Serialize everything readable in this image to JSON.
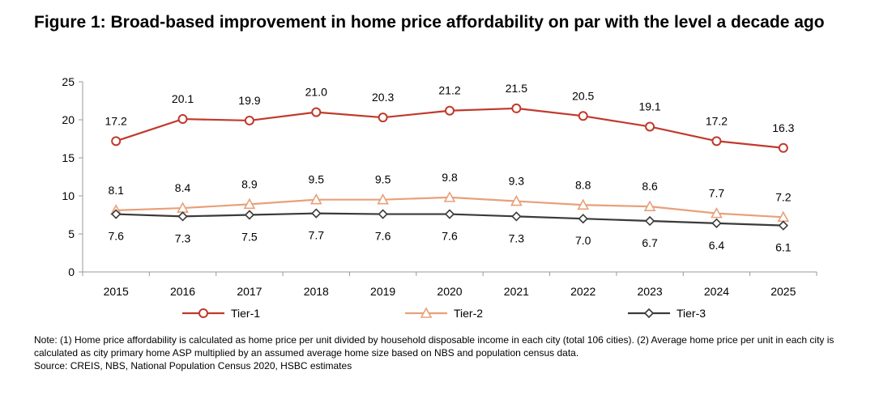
{
  "title": "Figure 1: Broad-based improvement in home price affordability on par with the level a decade ago",
  "notes": {
    "note": "Note: (1) Home price affordability is calculated as home price per unit divided by household disposable income in each city (total 106 cities). (2) Average home price per unit in each city is calculated as city primary home ASP multiplied by an assumed average home size based on NBS and population census data.",
    "source": "Source: CREIS, NBS, National Population Census 2020, HSBC estimates"
  },
  "chart_data": {
    "type": "line",
    "title": "Figure 1: Broad-based improvement in home price affordability on par with the level a decade ago",
    "xlabel": "",
    "ylabel": "",
    "x": [
      "2015",
      "2016",
      "2017",
      "2018",
      "2019",
      "2020",
      "2021",
      "2022",
      "2023",
      "2024",
      "2025"
    ],
    "ylim": [
      0,
      25
    ],
    "yticks": [
      0,
      5,
      10,
      15,
      20,
      25
    ],
    "grid": false,
    "legend": "bottom",
    "series": [
      {
        "name": "Tier-1",
        "values": [
          17.2,
          20.1,
          19.9,
          21.0,
          20.3,
          21.2,
          21.5,
          20.5,
          19.1,
          17.2,
          16.3
        ],
        "labels": [
          "17.2",
          "20.1",
          "19.9",
          "21.0",
          "20.3",
          "21.2",
          "21.5",
          "20.5",
          "19.1",
          "17.2",
          "16.3"
        ],
        "color": "#c0392b",
        "marker": "circle",
        "label_position": "above"
      },
      {
        "name": "Tier-2",
        "values": [
          8.1,
          8.4,
          8.9,
          9.5,
          9.5,
          9.8,
          9.3,
          8.8,
          8.6,
          7.7,
          7.2
        ],
        "labels": [
          "8.1",
          "8.4",
          "8.9",
          "9.5",
          "9.5",
          "9.8",
          "9.3",
          "8.8",
          "8.6",
          "7.7",
          "7.2"
        ],
        "color": "#e8a07a",
        "marker": "triangle",
        "label_position": "above"
      },
      {
        "name": "Tier-3",
        "values": [
          7.6,
          7.3,
          7.5,
          7.7,
          7.6,
          7.6,
          7.3,
          7.0,
          6.7,
          6.4,
          6.1
        ],
        "labels": [
          "7.6",
          "7.3",
          "7.5",
          "7.7",
          "7.6",
          "7.6",
          "7.3",
          "7.0",
          "6.7",
          "6.4",
          "6.1"
        ],
        "color": "#3a3a3a",
        "marker": "diamond",
        "label_position": "below"
      }
    ]
  }
}
